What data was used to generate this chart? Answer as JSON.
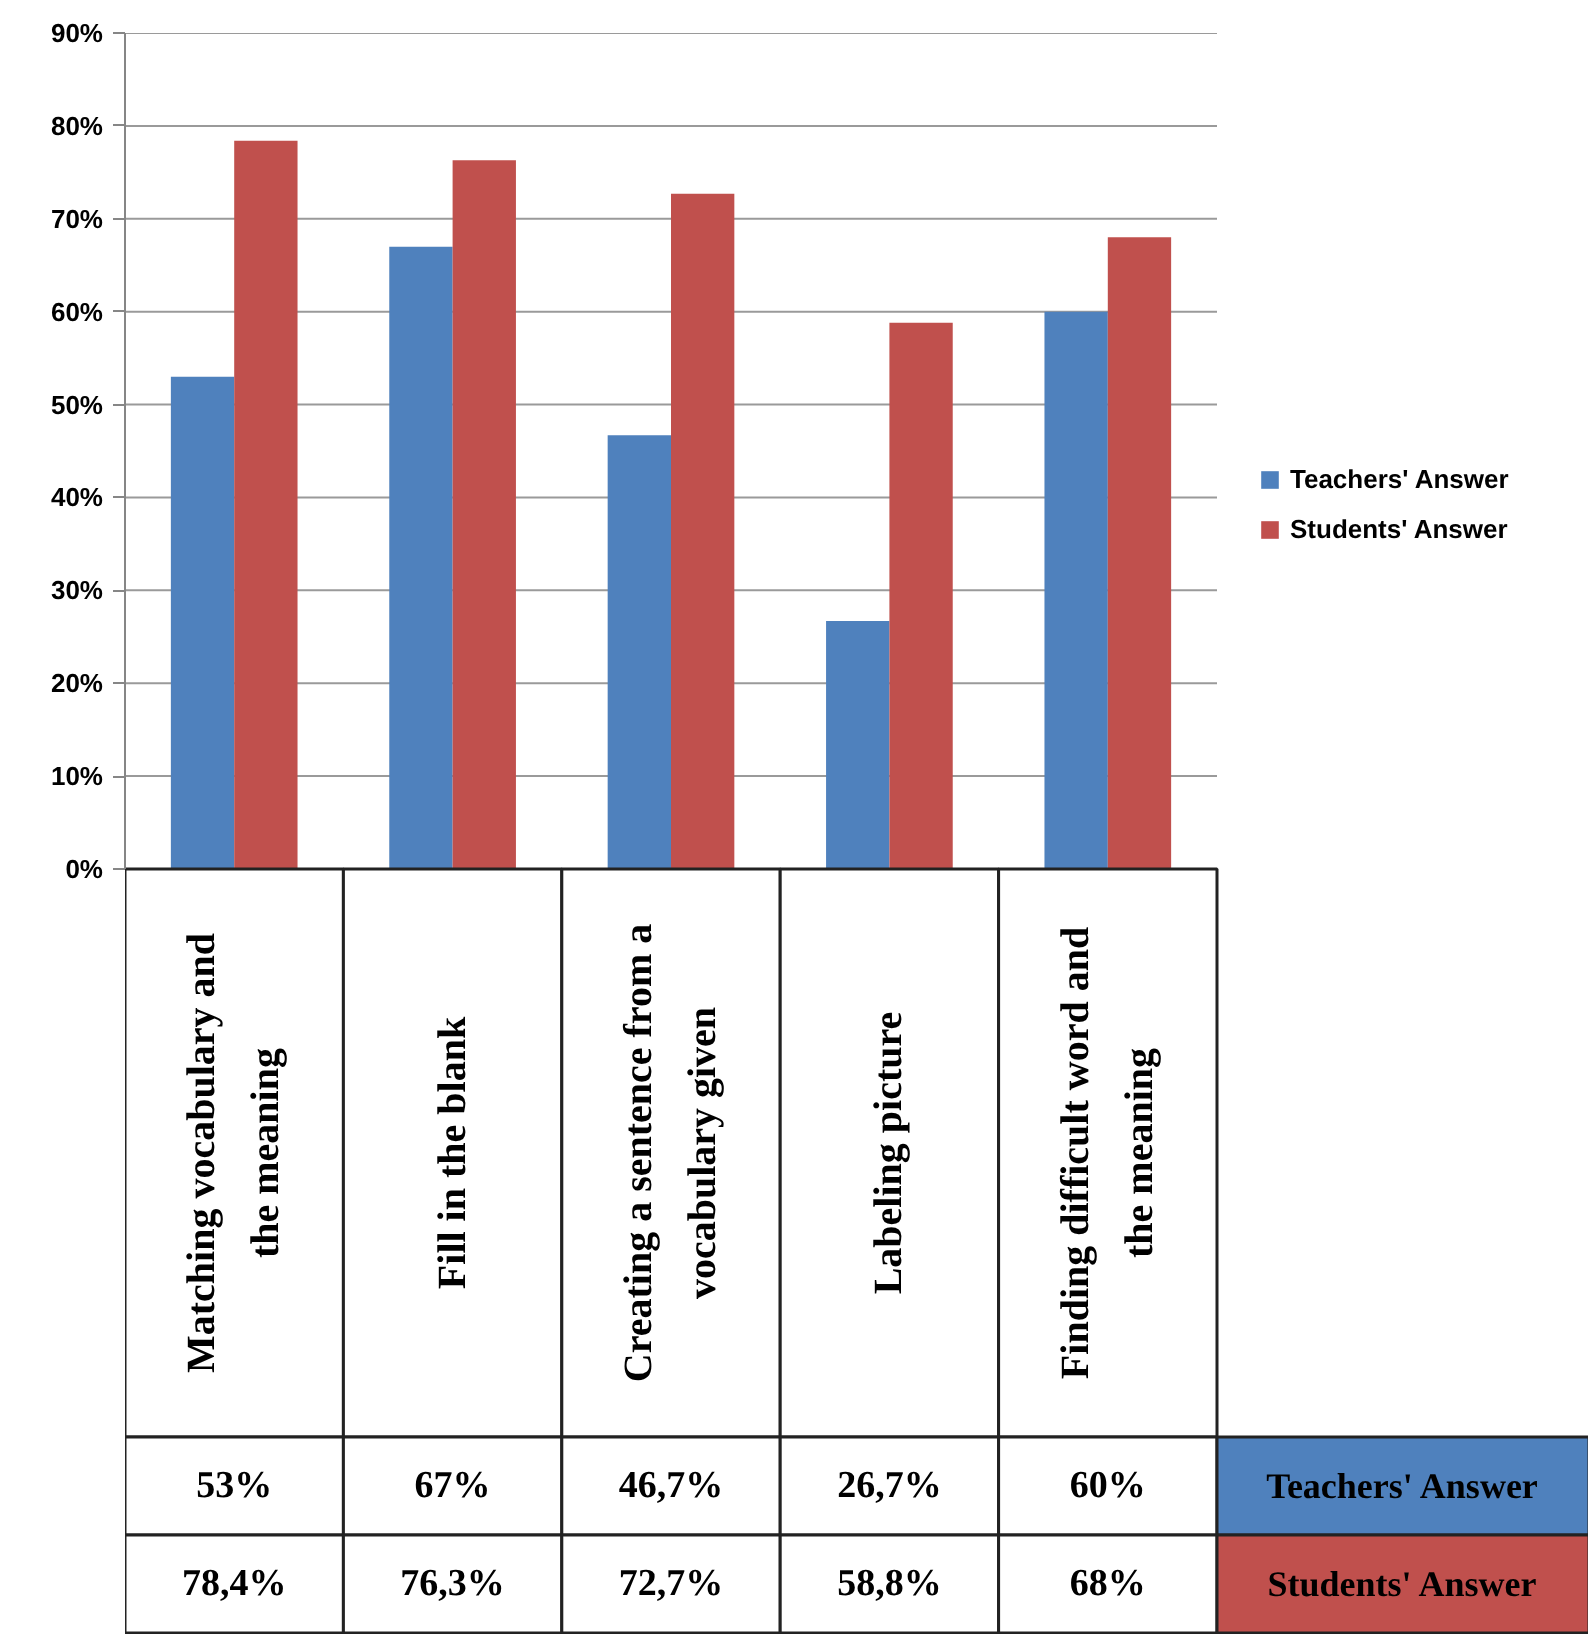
{
  "chart_data": {
    "type": "bar",
    "categories": [
      "Matching vocabulary and the meaning",
      "Fill in the blank",
      "Creating a sentence from a vocabulary given",
      "Labeling picture",
      "Finding difficult word and the meaning"
    ],
    "series": [
      {
        "name": "Teachers' Answer",
        "color": "#4f81bd",
        "values": [
          53,
          67,
          46.7,
          26.7,
          60
        ],
        "value_labels": [
          "53%",
          "67%",
          "46,7%",
          "26,7%",
          "60%"
        ]
      },
      {
        "name": "Students' Answer",
        "color": "#c0504d",
        "values": [
          78.4,
          76.3,
          72.7,
          58.8,
          68
        ],
        "value_labels": [
          "78,4%",
          "76,3%",
          "72,7%",
          "58,8%",
          "68%"
        ]
      }
    ],
    "ylim": [
      0,
      90
    ],
    "yticks": [
      {
        "value": 0,
        "label": "0%"
      },
      {
        "value": 10,
        "label": "10%"
      },
      {
        "value": 20,
        "label": "20%"
      },
      {
        "value": 30,
        "label": "30%"
      },
      {
        "value": 40,
        "label": "40%"
      },
      {
        "value": 50,
        "label": "50%"
      },
      {
        "value": 60,
        "label": "60%"
      },
      {
        "value": 70,
        "label": "70%"
      },
      {
        "value": 80,
        "label": "80%"
      },
      {
        "value": 90,
        "label": "90%"
      }
    ],
    "grid": "y",
    "legend": "right"
  }
}
